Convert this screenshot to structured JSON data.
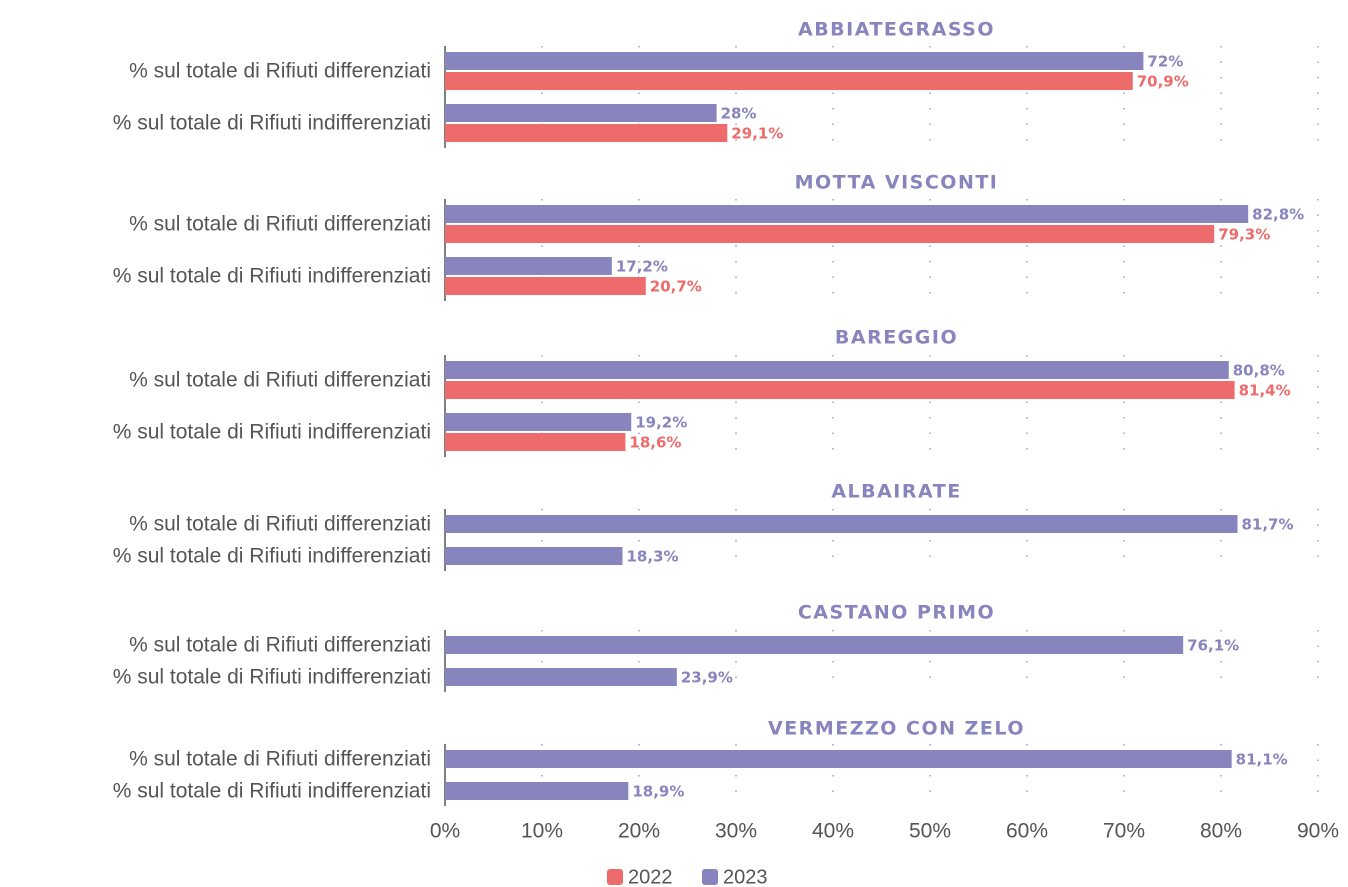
{
  "chart_data": {
    "type": "bar",
    "orientation": "horizontal",
    "xlim": [
      0,
      90
    ],
    "xticks": [
      {
        "value": 0,
        "label": "0%"
      },
      {
        "value": 10,
        "label": "10%"
      },
      {
        "value": 20,
        "label": "20%"
      },
      {
        "value": 30,
        "label": "30%"
      },
      {
        "value": 40,
        "label": "40%"
      },
      {
        "value": 50,
        "label": "50%"
      },
      {
        "value": 60,
        "label": "60%"
      },
      {
        "value": 70,
        "label": "70%"
      },
      {
        "value": 80,
        "label": "80%"
      },
      {
        "value": 90,
        "label": "90%"
      }
    ],
    "grid": true,
    "legend": "bottom",
    "series": [
      {
        "name": "2022",
        "color": "#ee6b6b"
      },
      {
        "name": "2023",
        "color": "#8884be"
      }
    ],
    "panels": [
      {
        "title": "ABBIATEGRASSO",
        "categories": [
          "% sul totale di Rifiuti differenziati",
          "% sul totale di Rifiuti indifferenziati"
        ],
        "data": [
          [
            70.9,
            29.1
          ],
          [
            72,
            28
          ]
        ],
        "value_labels": [
          [
            "70,9%",
            "29,1%"
          ],
          [
            "72%",
            "28%"
          ]
        ]
      },
      {
        "title": "MOTTA VISCONTI",
        "categories": [
          "% sul totale di Rifiuti differenziati",
          "% sul totale di Rifiuti indifferenziati"
        ],
        "data": [
          [
            79.3,
            20.7
          ],
          [
            82.8,
            17.2
          ]
        ],
        "value_labels": [
          [
            "79,3%",
            "20,7%"
          ],
          [
            "82,8%",
            "17,2%"
          ]
        ]
      },
      {
        "title": "BAREGGIO",
        "categories": [
          "% sul totale di Rifiuti differenziati",
          "% sul totale di Rifiuti indifferenziati"
        ],
        "data": [
          [
            81.4,
            18.6
          ],
          [
            80.8,
            19.2
          ]
        ],
        "value_labels": [
          [
            "81,4%",
            "18,6%"
          ],
          [
            "80,8%",
            "19,2%"
          ]
        ]
      },
      {
        "title": "ALBAIRATE",
        "categories": [
          "% sul totale di Rifiuti differenziati",
          "% sul totale di Rifiuti indifferenziati"
        ],
        "data": [
          null,
          [
            81.7,
            18.3
          ]
        ],
        "value_labels": [
          null,
          [
            "81,7%",
            "18,3%"
          ]
        ]
      },
      {
        "title": "CASTANO PRIMO",
        "categories": [
          "% sul totale di Rifiuti differenziati",
          "% sul totale di Rifiuti indifferenziati"
        ],
        "data": [
          null,
          [
            76.1,
            23.9
          ]
        ],
        "value_labels": [
          null,
          [
            "76,1%",
            "23,9%"
          ]
        ]
      },
      {
        "title": "VERMEZZO CON ZELO",
        "categories": [
          "% sul totale di Rifiuti differenziati",
          "% sul totale di Rifiuti indifferenziati"
        ],
        "data": [
          null,
          [
            81.1,
            18.9
          ]
        ],
        "value_labels": [
          null,
          [
            "81,1%",
            "18,9%"
          ]
        ]
      }
    ]
  }
}
